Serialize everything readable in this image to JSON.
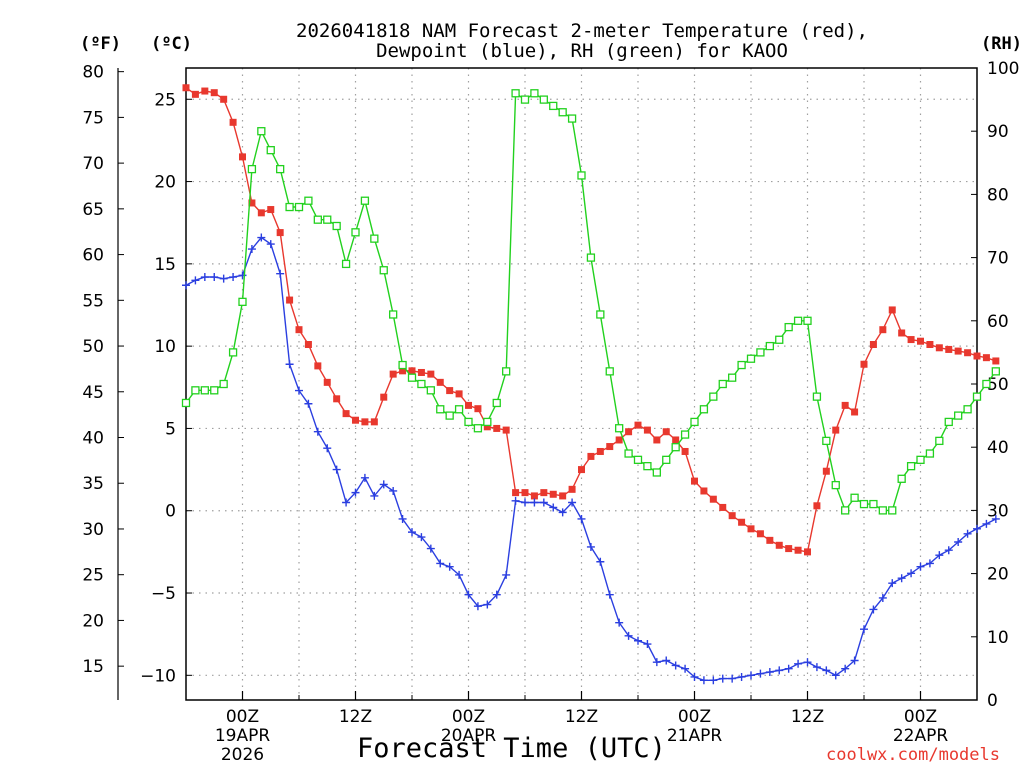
{
  "chart_data": {
    "type": "line",
    "title_line1": "2026041818 NAM Forecast 2-meter Temperature (red),",
    "title_line2": "Dewpoint (blue), RH (green) for KAOO",
    "xlabel": "Forecast Time (UTC)",
    "credit": "coolwx.com/models",
    "left_outer_axis": {
      "label": "(ºF)",
      "range": [
        11.3,
        80.4
      ],
      "ticks": [
        80,
        75,
        70,
        65,
        60,
        55,
        50,
        45,
        40,
        35,
        30,
        25,
        20,
        15
      ]
    },
    "left_inner_axis": {
      "label": "(ºC)",
      "range": [
        -11.5,
        26.9
      ],
      "ticks": [
        25,
        20,
        15,
        10,
        5,
        0,
        -5,
        -10
      ]
    },
    "right_axis": {
      "label": "(RH)",
      "range": [
        0,
        100
      ],
      "ticks": [
        100,
        90,
        80,
        70,
        60,
        50,
        40,
        30,
        20,
        10,
        0
      ]
    },
    "x_range_hours": [
      18,
      102
    ],
    "x_ticks": [
      {
        "hour": 24,
        "label": "00Z",
        "date": "19APR",
        "year": "2026"
      },
      {
        "hour": 36,
        "label": "12Z",
        "date": "",
        "year": ""
      },
      {
        "hour": 48,
        "label": "00Z",
        "date": "20APR",
        "year": ""
      },
      {
        "hour": 60,
        "label": "12Z",
        "date": "",
        "year": ""
      },
      {
        "hour": 72,
        "label": "00Z",
        "date": "21APR",
        "year": ""
      },
      {
        "hour": 84,
        "label": "12Z",
        "date": "",
        "year": ""
      },
      {
        "hour": 96,
        "label": "00Z",
        "date": "22APR",
        "year": ""
      }
    ],
    "forecast_hours_start": 18,
    "series": [
      {
        "name": "Temperature",
        "axis": "celsius",
        "color": "#e8382e",
        "marker": "filled-square",
        "values": [
          25.7,
          25.3,
          25.5,
          25.4,
          25.0,
          23.6,
          21.5,
          18.7,
          18.1,
          18.3,
          16.9,
          12.8,
          11.0,
          10.1,
          8.8,
          7.8,
          6.8,
          5.9,
          5.5,
          5.4,
          5.4,
          6.9,
          8.3,
          8.5,
          8.5,
          8.4,
          8.3,
          7.8,
          7.3,
          7.1,
          6.4,
          6.2,
          5.1,
          5.0,
          4.9,
          1.1,
          1.1,
          0.9,
          1.1,
          1.0,
          0.9,
          1.3,
          2.5,
          3.3,
          3.6,
          3.9,
          4.3,
          4.8,
          5.2,
          4.9,
          4.3,
          4.8,
          4.3,
          3.6,
          1.8,
          1.2,
          0.7,
          0.2,
          -0.3,
          -0.7,
          -1.1,
          -1.4,
          -1.8,
          -2.1,
          -2.3,
          -2.4,
          -2.5,
          0.3,
          2.4,
          4.9,
          6.4,
          6.0,
          8.9,
          10.1,
          11.0,
          12.2,
          10.8,
          10.4,
          10.3,
          10.1,
          9.9,
          9.8,
          9.7,
          9.6,
          9.4,
          9.3,
          9.1
        ]
      },
      {
        "name": "Dewpoint",
        "axis": "celsius",
        "color": "#2b3fe0",
        "marker": "cross",
        "values": [
          13.7,
          14.0,
          14.2,
          14.2,
          14.1,
          14.2,
          14.3,
          15.9,
          16.6,
          16.2,
          14.4,
          8.9,
          7.3,
          6.5,
          4.8,
          3.8,
          2.5,
          0.5,
          1.1,
          2.0,
          0.9,
          1.6,
          1.2,
          -0.5,
          -1.3,
          -1.6,
          -2.3,
          -3.2,
          -3.4,
          -3.9,
          -5.1,
          -5.8,
          -5.7,
          -5.1,
          -3.9,
          0.6,
          0.5,
          0.5,
          0.5,
          0.2,
          -0.1,
          0.5,
          -0.5,
          -2.2,
          -3.1,
          -5.1,
          -6.8,
          -7.6,
          -7.9,
          -8.1,
          -9.2,
          -9.1,
          -9.4,
          -9.6,
          -10.1,
          -10.3,
          -10.3,
          -10.2,
          -10.2,
          -10.1,
          -10.0,
          -9.9,
          -9.8,
          -9.7,
          -9.6,
          -9.3,
          -9.2,
          -9.5,
          -9.7,
          -10.0,
          -9.6,
          -9.1,
          -7.2,
          -6.0,
          -5.3,
          -4.4,
          -4.1,
          -3.8,
          -3.4,
          -3.2,
          -2.7,
          -2.4,
          -1.9,
          -1.4,
          -1.1,
          -0.8,
          -0.5
        ]
      },
      {
        "name": "RH",
        "axis": "rh",
        "color": "#22d11e",
        "marker": "open-square",
        "values": [
          47,
          49,
          49,
          49,
          50,
          55,
          63,
          84,
          90,
          87,
          84,
          78,
          78,
          79,
          76,
          76,
          75,
          69,
          74,
          79,
          73,
          68,
          61,
          53,
          51,
          50,
          49,
          46,
          45,
          46,
          44,
          43,
          44,
          47,
          52,
          96,
          95,
          96,
          95,
          94,
          93,
          92,
          83,
          70,
          61,
          52,
          43,
          39,
          38,
          37,
          36,
          38,
          40,
          42,
          44,
          46,
          48,
          50,
          51,
          53,
          54,
          55,
          56,
          57,
          59,
          60,
          60,
          48,
          41,
          34,
          30,
          32,
          31,
          31,
          30,
          30,
          35,
          37,
          38,
          39,
          41,
          44,
          45,
          46,
          48,
          50,
          52
        ]
      }
    ]
  }
}
